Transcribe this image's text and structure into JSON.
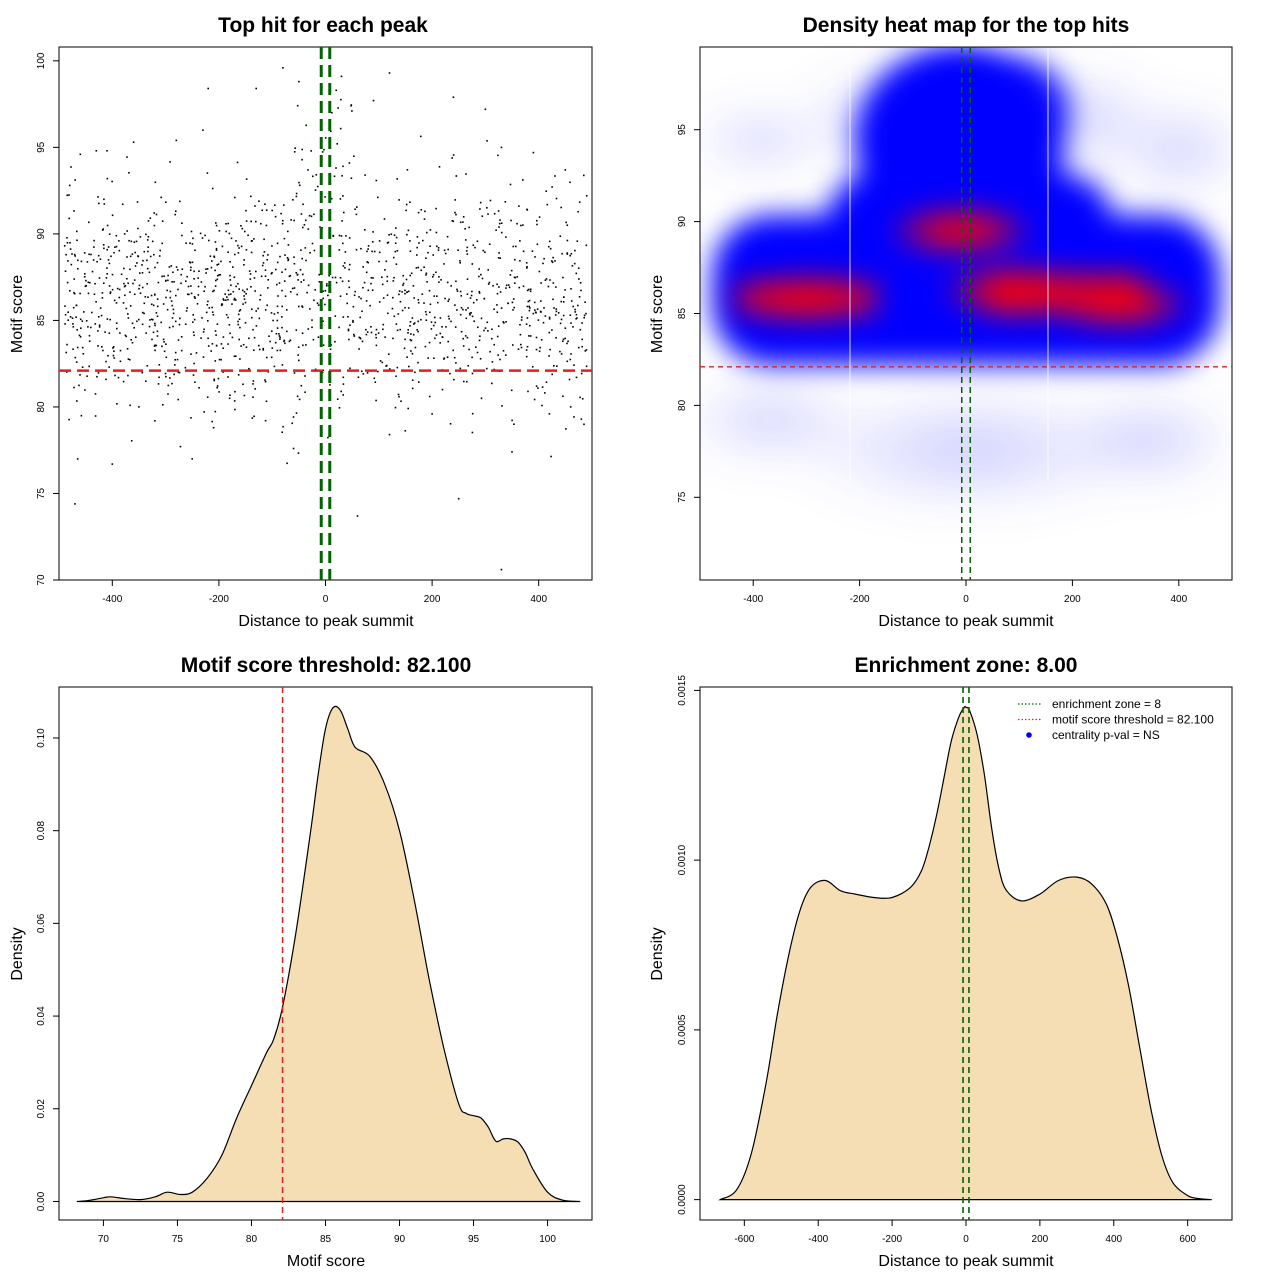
{
  "colors": {
    "points": "#000000",
    "threshold_line": "#e02020",
    "zone_line": "#006400",
    "density_fill": "#f5deb3",
    "heat_low": "#ffffff",
    "heat_mid": "#0000ff",
    "heat_high": "#ff0000",
    "legend_dot": "#0000ff"
  },
  "chart_data": [
    {
      "type": "scatter",
      "title": "Top hit for each peak",
      "xlabel": "Distance to peak summit",
      "ylabel": "Motif score",
      "xlim": [
        -500,
        500
      ],
      "ylim": [
        70,
        100.8
      ],
      "xticks": [
        "-400",
        "-200",
        "0",
        "200",
        "400"
      ],
      "xtick_values": [
        -400,
        -200,
        0,
        200,
        400
      ],
      "yticks": [
        "70",
        "75",
        "80",
        "85",
        "90",
        "95",
        "100"
      ],
      "ytick_values": [
        70,
        75,
        80,
        85,
        90,
        95,
        100
      ],
      "points_note": "approximately 1500 peak top hits spread over x -500..500, scores mostly 78-95, concentrated near 82-90",
      "points": [
        [
          -470,
          74.4
        ],
        [
          -465,
          77.0
        ],
        [
          -400,
          76.7
        ],
        [
          -320,
          79.2
        ],
        [
          -250,
          77.0
        ],
        [
          -210,
          78.8
        ],
        [
          -60,
          77.6
        ],
        [
          60,
          73.7
        ],
        [
          250,
          74.7
        ],
        [
          330,
          70.6
        ],
        [
          350,
          77.4
        ],
        [
          -480,
          92.8
        ],
        [
          -460,
          94.6
        ],
        [
          -430,
          94.8
        ],
        [
          -410,
          94.8
        ],
        [
          -360,
          95.3
        ],
        [
          -280,
          95.4
        ],
        [
          -230,
          96.0
        ],
        [
          -220,
          98.4
        ],
        [
          -130,
          98.4
        ],
        [
          -80,
          99.6
        ],
        [
          -50,
          98.8
        ],
        [
          20,
          98.3
        ],
        [
          30,
          99.1
        ],
        [
          90,
          97.7
        ],
        [
          120,
          99.3
        ],
        [
          240,
          97.9
        ],
        [
          300,
          97.2
        ],
        [
          330,
          95.0
        ],
        [
          390,
          94.7
        ],
        [
          450,
          93.7
        ],
        [
          490,
          92.2
        ],
        [
          480,
          79.3
        ],
        [
          460,
          80.0
        ],
        [
          420,
          79.6
        ],
        [
          380,
          80.9
        ],
        [
          200,
          79.6
        ],
        [
          120,
          78.4
        ],
        [
          -180,
          80.5
        ],
        [
          -350,
          80.0
        ]
      ],
      "threshold_y": 82.1,
      "zone_x": [
        -8,
        8
      ]
    },
    {
      "type": "heatmap",
      "title": "Density heat map for the top hits",
      "xlabel": "Distance to peak summit",
      "ylabel": "Motif score",
      "xlim": [
        -500,
        500
      ],
      "ylim": [
        70.5,
        99.5
      ],
      "xticks": [
        "-400",
        "-200",
        "0",
        "200",
        "400"
      ],
      "xtick_values": [
        -400,
        -200,
        0,
        200,
        400
      ],
      "yticks": [
        "75",
        "80",
        "85",
        "90",
        "95"
      ],
      "ytick_values": [
        75,
        80,
        85,
        90,
        95
      ],
      "hotspots": [
        {
          "x": -300,
          "y": 85.8,
          "intensity": "high"
        },
        {
          "x": -10,
          "y": 89.5,
          "intensity": "high"
        },
        {
          "x": 90,
          "y": 86.2,
          "intensity": "high"
        },
        {
          "x": 290,
          "y": 85.5,
          "intensity": "high"
        },
        {
          "x": 0,
          "y": 97.0,
          "intensity": "medium"
        }
      ],
      "threshold_y": 82.1,
      "zone_x": [
        -8,
        8
      ]
    },
    {
      "type": "area",
      "title": "Motif score threshold: 82.100",
      "xlabel": "Motif score",
      "ylabel": "Density",
      "xlim": [
        67,
        103
      ],
      "ylim": [
        -0.004,
        0.111
      ],
      "xticks": [
        "70",
        "75",
        "80",
        "85",
        "90",
        "95",
        "100"
      ],
      "xtick_values": [
        70,
        75,
        80,
        85,
        90,
        95,
        100
      ],
      "yticks": [
        "0.00",
        "0.02",
        "0.04",
        "0.06",
        "0.08",
        "0.10"
      ],
      "ytick_values": [
        0,
        0.02,
        0.04,
        0.06,
        0.08,
        0.1
      ],
      "x": [
        68.2,
        69,
        70,
        70.5,
        71.5,
        72.5,
        73.5,
        74.3,
        75.2,
        76,
        77,
        78,
        79,
        80,
        81,
        81.5,
        82.1,
        83,
        84,
        84.5,
        85,
        85.5,
        86,
        86.5,
        87,
        88,
        89,
        90,
        91,
        92,
        93,
        94,
        94.5,
        95,
        95.5,
        96,
        96.5,
        97,
        97.5,
        98,
        98.5,
        99,
        100,
        101,
        102.2
      ],
      "y": [
        0.0,
        0.0002,
        0.0008,
        0.001,
        0.0006,
        0.0004,
        0.001,
        0.002,
        0.0015,
        0.002,
        0.005,
        0.01,
        0.018,
        0.025,
        0.032,
        0.035,
        0.042,
        0.058,
        0.08,
        0.092,
        0.102,
        0.1065,
        0.106,
        0.102,
        0.098,
        0.096,
        0.09,
        0.08,
        0.065,
        0.048,
        0.033,
        0.021,
        0.019,
        0.0185,
        0.018,
        0.016,
        0.013,
        0.0135,
        0.0135,
        0.0128,
        0.0105,
        0.007,
        0.002,
        0.0003,
        0.0
      ],
      "threshold_x": 82.1
    },
    {
      "type": "area",
      "title": "Enrichment zone: 8.00",
      "xlabel": "Distance to peak summit",
      "ylabel": "Density",
      "xlim": [
        -720,
        720
      ],
      "ylim": [
        -6e-05,
        0.00151
      ],
      "xticks": [
        "-600",
        "-400",
        "-200",
        "0",
        "200",
        "400",
        "600"
      ],
      "xtick_values": [
        -600,
        -400,
        -200,
        0,
        200,
        400,
        600
      ],
      "yticks": [
        "0.0000",
        "0.0005",
        "0.0010",
        "0.0015"
      ],
      "ytick_values": [
        0,
        0.0005,
        0.001,
        0.0015
      ],
      "x": [
        -665,
        -620,
        -580,
        -540,
        -510,
        -480,
        -450,
        -420,
        -380,
        -340,
        -300,
        -250,
        -200,
        -150,
        -120,
        -100,
        -80,
        -60,
        -40,
        -20,
        -5,
        0,
        10,
        30,
        50,
        70,
        90,
        110,
        150,
        200,
        250,
        300,
        340,
        380,
        410,
        440,
        470,
        500,
        530,
        560,
        600,
        630,
        665
      ],
      "y": [
        0.0,
        3e-05,
        0.00014,
        0.00035,
        0.00055,
        0.00072,
        0.00085,
        0.00092,
        0.00094,
        0.00091,
        0.0009,
        0.00089,
        0.00089,
        0.00092,
        0.00097,
        0.00104,
        0.00113,
        0.00124,
        0.00135,
        0.00142,
        0.00145,
        0.00145,
        0.00144,
        0.00137,
        0.00125,
        0.00109,
        0.00097,
        0.00091,
        0.00088,
        0.0009,
        0.00094,
        0.00095,
        0.00093,
        0.00087,
        0.00077,
        0.00063,
        0.00045,
        0.00027,
        0.00013,
        5e-05,
        1.2e-05,
        3e-06,
        0.0
      ],
      "zone_x": [
        -8,
        8
      ],
      "legend": [
        {
          "label": "enrichment zone = 8",
          "symbol": "dotted-line",
          "color": "#006400"
        },
        {
          "label": "motif score threshold = 82.100",
          "symbol": "dotted-line",
          "color": "#e02020"
        },
        {
          "label": "centrality p-val = NS",
          "symbol": "dot",
          "color": "#0000ff"
        }
      ],
      "legend_position": "top-right"
    }
  ]
}
